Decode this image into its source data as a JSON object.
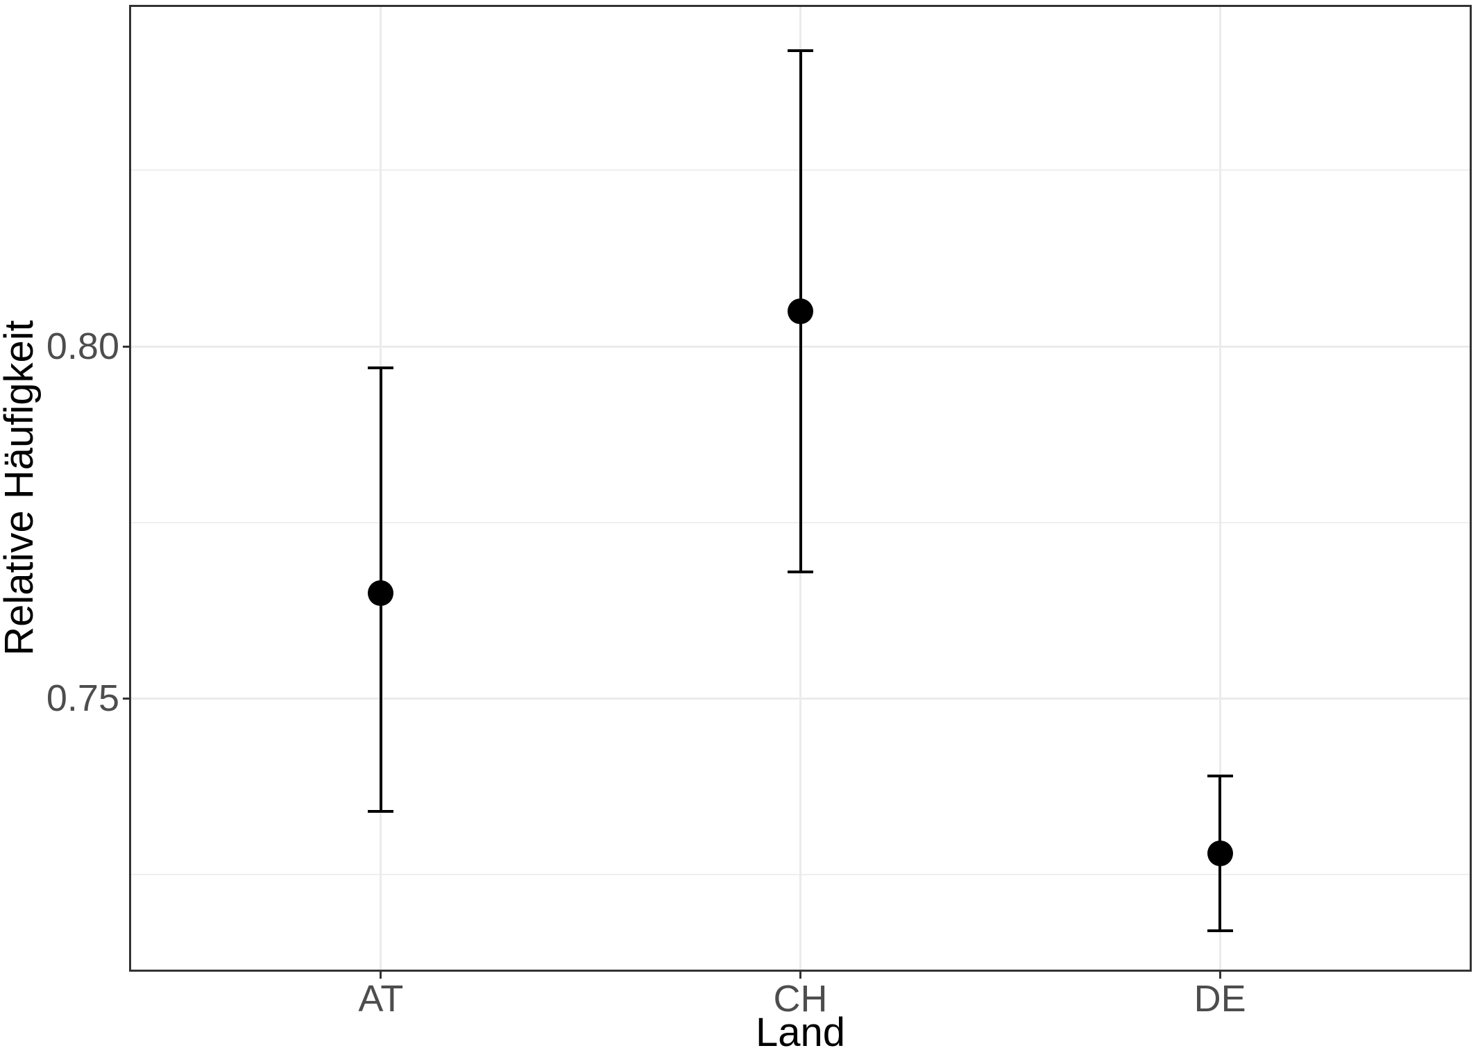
{
  "figure": {
    "x_axis_title": "Land",
    "y_axis_title": "Relative Häufigkeit"
  },
  "chart_data": {
    "type": "scatter",
    "subtype": "point-estimates-with-error-bars",
    "title": "",
    "xlabel": "Land",
    "ylabel": "Relative Häufigkeit",
    "categories": [
      "AT",
      "CH",
      "DE"
    ],
    "series": [
      {
        "name": "Relative Häufigkeit",
        "points": [
          {
            "category": "AT",
            "estimate": 0.765,
            "ci_lower": 0.734,
            "ci_upper": 0.797
          },
          {
            "category": "CH",
            "estimate": 0.805,
            "ci_lower": 0.768,
            "ci_upper": 0.842
          },
          {
            "category": "DE",
            "estimate": 0.728,
            "ci_lower": 0.717,
            "ci_upper": 0.739
          }
        ]
      }
    ],
    "y_ticks": [
      0.75,
      0.8
    ],
    "y_tick_labels": [
      "0.75",
      "0.80"
    ],
    "y_minor_gridlines": [
      0.725,
      0.775,
      0.825
    ],
    "ylim": [
      0.7112,
      0.8485
    ],
    "grid": true,
    "legend_position": "none",
    "point_color": "#000000",
    "errorbar_color": "#000000",
    "major_gridline_color": "#ebebeb",
    "minor_gridline_color": "#efefef",
    "panel_border_color": "#333333",
    "tick_label_color": "#4d4d4d",
    "axis_title_color": "#000000",
    "background_color": "#ffffff"
  }
}
